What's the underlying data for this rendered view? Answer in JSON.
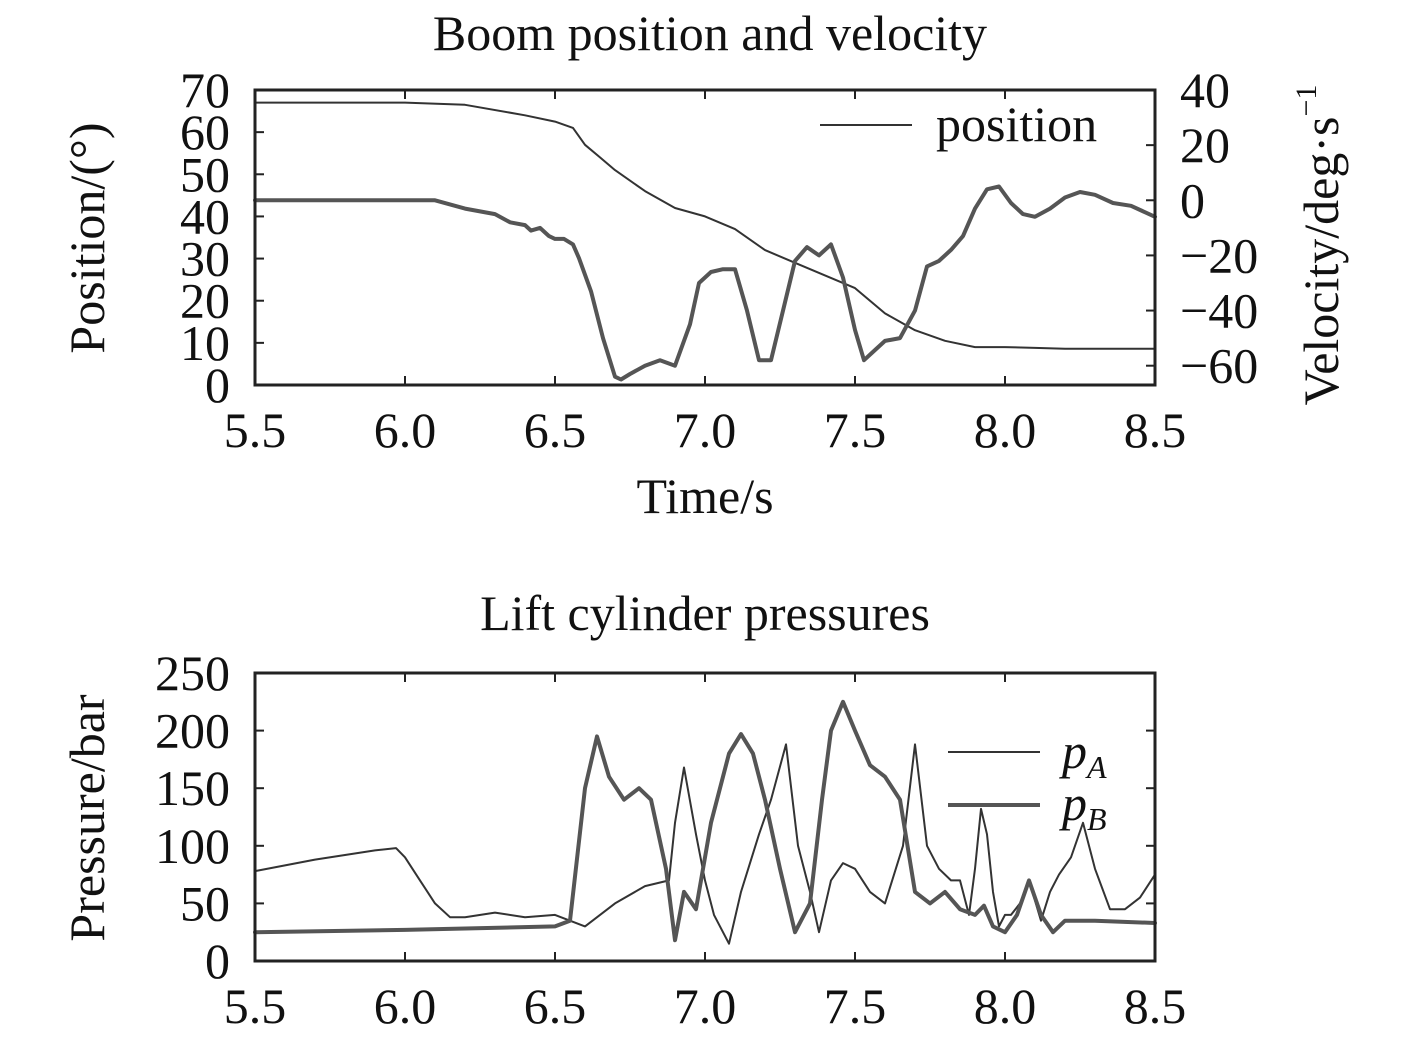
{
  "chart_data": [
    {
      "type": "line",
      "title": "Boom position and velocity",
      "xlabel": "Time/s",
      "ylabel": "Position/(°)",
      "y2label": "Velocity/deg·s",
      "y2label_sup": "−1",
      "xlim": [
        5.5,
        8.5
      ],
      "ylim": [
        0,
        70
      ],
      "y2lim": [
        -67,
        40
      ],
      "x_ticks": [
        "5.5",
        "6.0",
        "6.5",
        "7.0",
        "7.5",
        "8.0",
        "8.5"
      ],
      "y_ticks": [
        "0",
        "10",
        "20",
        "30",
        "40",
        "50",
        "60",
        "70"
      ],
      "y2_ticks": [
        "−60",
        "−40",
        "−20",
        "0",
        "20",
        "40"
      ],
      "legend": [
        "position"
      ],
      "series": [
        {
          "name": "position",
          "axis": "left",
          "color": "#333333",
          "x": [
            5.5,
            6.0,
            6.2,
            6.4,
            6.5,
            6.56,
            6.6,
            6.65,
            6.7,
            6.8,
            6.9,
            7.0,
            7.1,
            7.2,
            7.3,
            7.4,
            7.5,
            7.6,
            7.7,
            7.8,
            7.9,
            8.0,
            8.1,
            8.2,
            8.3,
            8.4,
            8.5
          ],
          "y": [
            67,
            67,
            66.5,
            64,
            62.5,
            61,
            57,
            54,
            51,
            46,
            42,
            40,
            37,
            32,
            29,
            26,
            23,
            17,
            13,
            10.5,
            9,
            9,
            8.8,
            8.6,
            8.6,
            8.6,
            8.6
          ]
        },
        {
          "name": "velocity",
          "axis": "right",
          "color": "#555555",
          "x": [
            5.5,
            5.8,
            6.1,
            6.2,
            6.3,
            6.35,
            6.4,
            6.42,
            6.45,
            6.48,
            6.5,
            6.53,
            6.56,
            6.58,
            6.62,
            6.66,
            6.7,
            6.72,
            6.75,
            6.8,
            6.85,
            6.9,
            6.95,
            6.98,
            7.02,
            7.06,
            7.1,
            7.14,
            7.18,
            7.22,
            7.26,
            7.3,
            7.34,
            7.38,
            7.42,
            7.46,
            7.5,
            7.53,
            7.56,
            7.6,
            7.65,
            7.7,
            7.74,
            7.78,
            7.82,
            7.86,
            7.9,
            7.94,
            7.98,
            8.02,
            8.06,
            8.1,
            8.15,
            8.2,
            8.25,
            8.3,
            8.36,
            8.42,
            8.5
          ],
          "y": [
            0,
            0,
            0,
            -3,
            -5,
            -8,
            -9,
            -11,
            -10,
            -13,
            -14,
            -14,
            -16,
            -21,
            -33,
            -50,
            -64,
            -65,
            -63,
            -60,
            -58,
            -60,
            -45,
            -30,
            -26,
            -25,
            -25,
            -40,
            -58,
            -58,
            -40,
            -22,
            -17,
            -20,
            -16,
            -28,
            -47,
            -58,
            -55,
            -51,
            -50,
            -40,
            -24,
            -22,
            -18,
            -13,
            -3,
            4,
            5,
            -1,
            -5,
            -6,
            -3,
            1,
            3,
            2,
            -1,
            -2,
            -6
          ]
        }
      ]
    },
    {
      "type": "line",
      "title": "Lift cylinder pressures",
      "xlabel": "",
      "ylabel": "Pressure/bar",
      "xlim": [
        5.5,
        8.5
      ],
      "ylim": [
        0,
        250
      ],
      "x_ticks": [
        "5.5",
        "6.0",
        "6.5",
        "7.0",
        "7.5",
        "8.0",
        "8.5"
      ],
      "y_ticks": [
        "0",
        "50",
        "100",
        "150",
        "200",
        "250"
      ],
      "legend": [
        "p",
        "p"
      ],
      "legend_sub": [
        "A",
        "B"
      ],
      "series": [
        {
          "name": "pA",
          "color": "#333333",
          "x": [
            5.5,
            5.7,
            5.9,
            5.97,
            6.0,
            6.05,
            6.1,
            6.15,
            6.2,
            6.3,
            6.4,
            6.5,
            6.55,
            6.6,
            6.7,
            6.8,
            6.88,
            6.9,
            6.93,
            6.97,
            7.0,
            7.03,
            7.08,
            7.12,
            7.18,
            7.22,
            7.27,
            7.31,
            7.35,
            7.38,
            7.42,
            7.46,
            7.5,
            7.55,
            7.6,
            7.66,
            7.7,
            7.74,
            7.78,
            7.82,
            7.85,
            7.88,
            7.9,
            7.92,
            7.94,
            7.96,
            7.98,
            8.0,
            8.02,
            8.05,
            8.08,
            8.12,
            8.15,
            8.18,
            8.22,
            8.26,
            8.3,
            8.35,
            8.4,
            8.45,
            8.5
          ],
          "y": [
            78,
            88,
            96,
            98,
            90,
            70,
            50,
            38,
            38,
            42,
            38,
            40,
            35,
            30,
            50,
            65,
            70,
            120,
            168,
            110,
            70,
            40,
            15,
            60,
            110,
            140,
            188,
            100,
            60,
            25,
            70,
            85,
            80,
            60,
            50,
            100,
            188,
            100,
            80,
            70,
            70,
            40,
            80,
            132,
            110,
            60,
            30,
            40,
            40,
            50,
            70,
            35,
            60,
            75,
            90,
            120,
            80,
            45,
            45,
            55,
            75
          ]
        },
        {
          "name": "pB",
          "color": "#555555",
          "x": [
            5.5,
            6.0,
            6.5,
            6.55,
            6.6,
            6.64,
            6.68,
            6.73,
            6.78,
            6.82,
            6.87,
            6.9,
            6.93,
            6.97,
            7.02,
            7.08,
            7.12,
            7.16,
            7.2,
            7.25,
            7.3,
            7.35,
            7.39,
            7.42,
            7.46,
            7.5,
            7.55,
            7.6,
            7.65,
            7.7,
            7.75,
            7.8,
            7.85,
            7.9,
            7.93,
            7.96,
            8.0,
            8.04,
            8.08,
            8.12,
            8.16,
            8.2,
            8.3,
            8.5
          ],
          "y": [
            25,
            27,
            30,
            35,
            150,
            195,
            160,
            140,
            150,
            140,
            80,
            18,
            60,
            45,
            120,
            180,
            197,
            180,
            140,
            80,
            25,
            50,
            140,
            200,
            225,
            200,
            170,
            160,
            140,
            60,
            50,
            60,
            45,
            40,
            48,
            30,
            25,
            40,
            70,
            40,
            25,
            35,
            35,
            33
          ]
        }
      ]
    }
  ]
}
